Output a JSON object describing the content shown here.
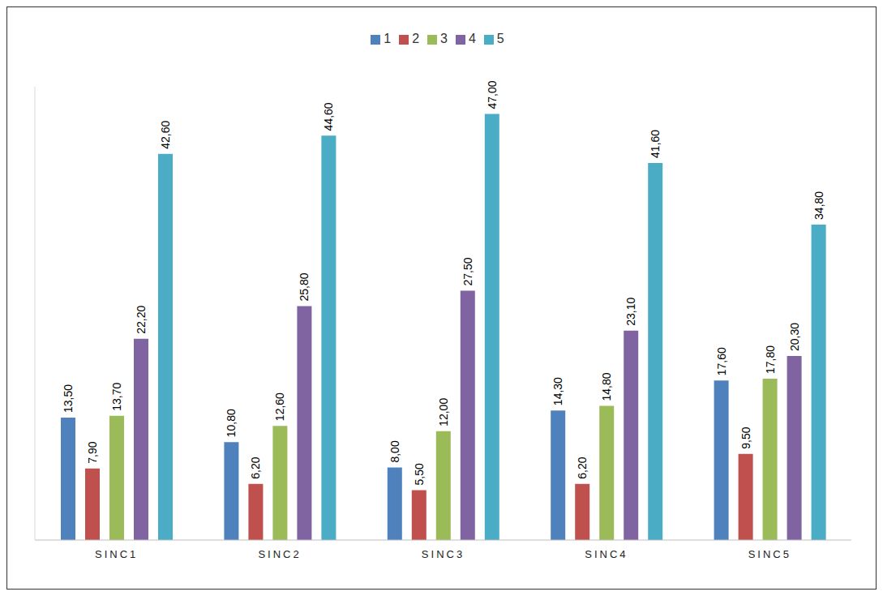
{
  "chart_data": {
    "type": "bar",
    "categories": [
      "SINC1",
      "SINC2",
      "SINC3",
      "SINC4",
      "SINC5"
    ],
    "series": [
      {
        "name": "1",
        "color": "#4F81BD",
        "values": [
          13.5,
          10.8,
          8.0,
          14.3,
          17.6
        ],
        "value_labels": [
          "13,50",
          "10,80",
          "8,00",
          "14,30",
          "17,60"
        ]
      },
      {
        "name": "2",
        "color": "#C0504D",
        "values": [
          7.9,
          6.2,
          5.5,
          6.2,
          9.5
        ],
        "value_labels": [
          "7,90",
          "6,20",
          "5,50",
          "6,20",
          "9,50"
        ]
      },
      {
        "name": "3",
        "color": "#9BBB59",
        "values": [
          13.7,
          12.6,
          12.0,
          14.8,
          17.8
        ],
        "value_labels": [
          "13,70",
          "12,60",
          "12,00",
          "14,80",
          "17,80"
        ]
      },
      {
        "name": "4",
        "color": "#8064A2",
        "values": [
          22.2,
          25.8,
          27.5,
          23.1,
          20.3
        ],
        "value_labels": [
          "22,20",
          "25,80",
          "27,50",
          "23,10",
          "20,30"
        ]
      },
      {
        "name": "5",
        "color": "#4BACC6",
        "values": [
          42.6,
          44.6,
          47.0,
          41.6,
          34.8
        ],
        "value_labels": [
          "42,60",
          "44,60",
          "47,00",
          "41,60",
          "34,80"
        ]
      }
    ],
    "ylim": [
      0,
      50
    ],
    "grid": false,
    "legend": "top",
    "data_labels": true,
    "tick_labels": "x"
  }
}
